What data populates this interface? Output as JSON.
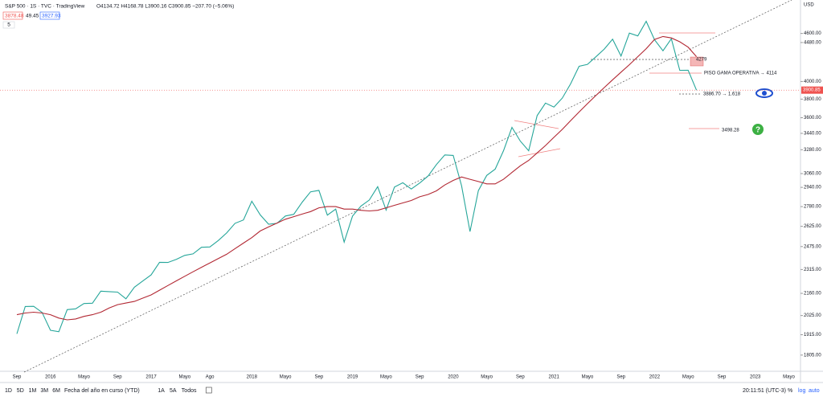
{
  "header": {
    "symbol": "S&P 500 · 1S · TVC · TradingView",
    "ohlc": "O4134.72 H4168.78 L3900.16 C3900.85 −207.70 (−5.06%)",
    "sell": "3878.48",
    "spread": "49.45",
    "buy": "3927.93",
    "indicators": "5"
  },
  "chart_data": {
    "type": "line",
    "log": true,
    "grid": false,
    "currency": "USD",
    "categories": [
      "Sep",
      null,
      null,
      null,
      "2016",
      null,
      null,
      null,
      "Mayo",
      null,
      null,
      null,
      "Sep",
      null,
      null,
      null,
      "2017",
      null,
      null,
      null,
      "Mayo",
      null,
      null,
      "Ago",
      null,
      null,
      null,
      null,
      "2018",
      null,
      null,
      null,
      "Mayo",
      null,
      null,
      null,
      "Sep",
      null,
      null,
      null,
      "2019",
      null,
      null,
      null,
      "Mayo",
      null,
      null,
      null,
      "Sep",
      null,
      null,
      null,
      "2020",
      null,
      null,
      null,
      "Mayo",
      null,
      null,
      null,
      "Sep",
      null,
      null,
      null,
      "2021",
      null,
      null,
      null,
      "Mayo",
      null,
      null,
      null,
      "Sep",
      null,
      null,
      null,
      "2022",
      null,
      null,
      null,
      "Mayo",
      null,
      null,
      null,
      "Sep",
      null,
      null,
      null,
      "2023",
      null,
      null,
      null,
      "Mayo"
    ],
    "series": [
      {
        "color": "#26a69a",
        "values": [
          1920,
          2079,
          2080,
          2044,
          1940,
          1932,
          2060,
          2065,
          2097,
          2099,
          2174,
          2171,
          2168,
          2126,
          2199,
          2239,
          2279,
          2364,
          2363,
          2384,
          2412,
          2423,
          2470,
          2472,
          2519,
          2575,
          2648,
          2674,
          2824,
          2714,
          2641,
          2648,
          2705,
          2718,
          2816,
          2902,
          2914,
          2712,
          2760,
          2507,
          2704,
          2784,
          2834,
          2946,
          2752,
          2942,
          2980,
          2926,
          2977,
          3038,
          3141,
          3231,
          3226,
          2954,
          2585,
          2912,
          3044,
          3100,
          3271,
          3500,
          3363,
          3270,
          3622,
          3756,
          3714,
          3811,
          3973,
          4181,
          4204,
          4298,
          4395,
          4523,
          4308,
          4605,
          4567,
          4766,
          4516,
          4374,
          4530,
          4132,
          4133,
          3900,
          null,
          null,
          null,
          null,
          null,
          null,
          null,
          null,
          null,
          null,
          null
        ]
      },
      {
        "color": "#b22833",
        "values": [
          2030,
          2040,
          2045,
          2040,
          2030,
          2010,
          2000,
          2005,
          2020,
          2030,
          2045,
          2070,
          2090,
          2100,
          2110,
          2130,
          2150,
          2180,
          2210,
          2240,
          2270,
          2300,
          2330,
          2360,
          2390,
          2420,
          2460,
          2500,
          2540,
          2590,
          2620,
          2650,
          2680,
          2700,
          2720,
          2740,
          2770,
          2780,
          2780,
          2760,
          2760,
          2750,
          2745,
          2750,
          2770,
          2790,
          2810,
          2830,
          2860,
          2880,
          2910,
          2960,
          3000,
          3030,
          3010,
          2990,
          2970,
          2970,
          3010,
          3070,
          3130,
          3180,
          3250,
          3320,
          3400,
          3480,
          3570,
          3660,
          3750,
          3840,
          3930,
          4020,
          4110,
          4200,
          4300,
          4400,
          4520,
          4560,
          4540,
          4490,
          4420,
          4300,
          null,
          null,
          null,
          null,
          null,
          null,
          null,
          null,
          null,
          null,
          null
        ]
      }
    ],
    "ylim": [
      1722,
      5070
    ],
    "yticks": [
      {
        "value": 4600,
        "label": "4600.00"
      },
      {
        "value": 4480,
        "label": "4480.00"
      },
      {
        "value": 4000,
        "label": "4000.00"
      },
      {
        "value": 3800,
        "label": "3800.00"
      },
      {
        "value": 3600,
        "label": "3600.00"
      },
      {
        "value": 3440,
        "label": "3440.00"
      },
      {
        "value": 3280,
        "label": "3280.00"
      },
      {
        "value": 3060,
        "label": "3060.00"
      },
      {
        "value": 2940,
        "label": "2940.00"
      },
      {
        "value": 2780,
        "label": "2780.00"
      },
      {
        "value": 2625,
        "label": "2625.00"
      },
      {
        "value": 2475,
        "label": "2475.00"
      },
      {
        "value": 2315,
        "label": "2315.00"
      },
      {
        "value": 2160,
        "label": "2160.00"
      },
      {
        "value": 2025,
        "label": "2025.00"
      },
      {
        "value": 1915,
        "label": "1915.00"
      },
      {
        "value": 1805,
        "label": "1805.00"
      }
    ],
    "last_price": 3900.85,
    "annotations": [
      "4279",
      "PISO GAMA OPERATIVA → 4114",
      "3886.70 → 1.618",
      "3498.28"
    ]
  },
  "toolbar": {
    "ranges": [
      "1D",
      "5D",
      "1M",
      "3M",
      "6M",
      "Fecha del año en curso (YTD)",
      "1A",
      "5A",
      "Todos"
    ],
    "clock": "20:11:51 (UTC-3)",
    "percent": "%",
    "log": "log",
    "auto": "auto"
  }
}
